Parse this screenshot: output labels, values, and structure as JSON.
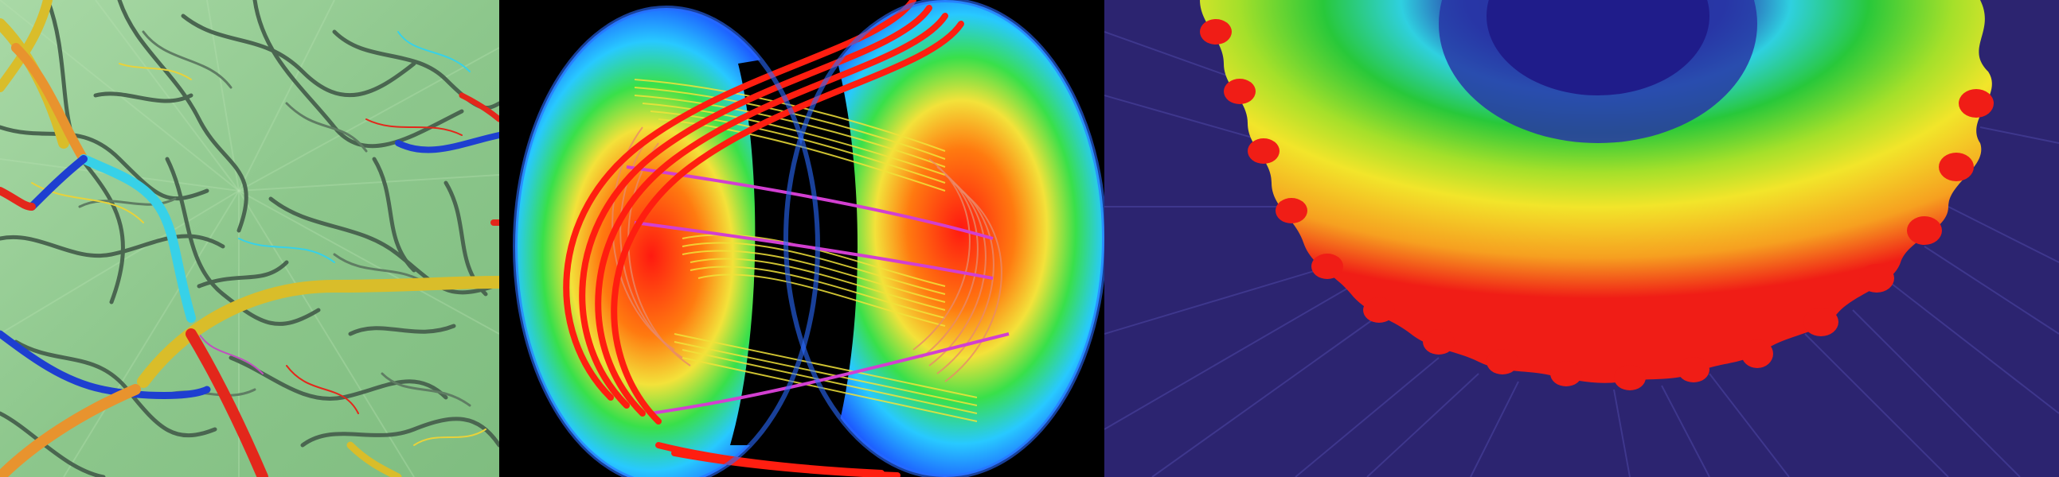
{
  "panels": [
    {
      "subject": "network-of-tubes",
      "palette": {
        "bg": "#8dc78c",
        "tube_dark": "#3f5c45",
        "orange": "#e8932e",
        "yellow": "#d9bd2a",
        "cyan": "#37d1e8",
        "blue": "#1e3fd0",
        "red": "#e3271b"
      }
    },
    {
      "subject": "torus-field-lines",
      "palette": {
        "bg": "#000000",
        "red": "#ff1e10",
        "yellow": "#f0e23a",
        "magenta": "#d23fd1",
        "blue": "#1b4cff",
        "cyan": "#28c9ff",
        "green": "#39e04a"
      }
    },
    {
      "subject": "radial-heatmap",
      "palette": {
        "bg": "#2c2470",
        "center": "#26208a",
        "cyan": "#2fd0e0",
        "green": "#28c83a",
        "yellow": "#f2e52a",
        "red": "#f01d16"
      }
    }
  ]
}
